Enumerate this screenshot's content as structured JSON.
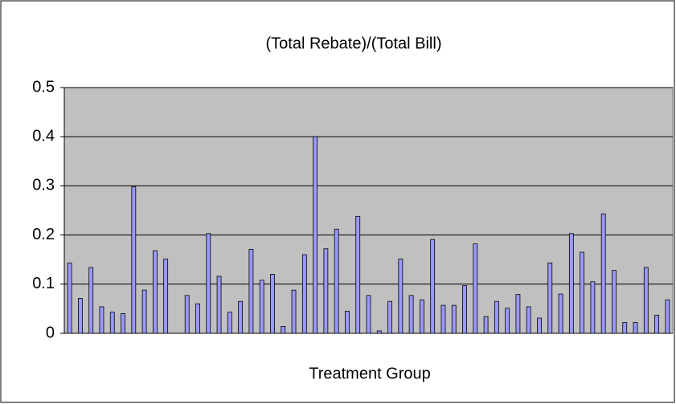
{
  "chart_data": {
    "type": "bar",
    "title": "(Total Rebate)/(Total Bill)",
    "x_label": "Treatment Group",
    "categories": [
      null,
      null,
      null,
      null,
      null,
      null,
      null,
      null,
      null,
      null,
      null,
      null,
      null,
      null,
      null,
      null,
      null,
      null,
      null,
      null,
      null,
      null,
      null,
      null,
      null,
      null,
      null,
      null,
      null,
      null,
      null,
      null,
      null,
      null,
      null,
      null,
      null,
      null,
      null,
      null,
      null,
      null,
      null,
      null,
      null,
      null,
      null,
      null,
      null,
      null,
      null,
      null,
      null,
      null,
      null,
      null,
      null
    ],
    "values": [
      0.143,
      0.071,
      0.134,
      0.054,
      0.043,
      0.04,
      0.298,
      0.088,
      0.168,
      0.151,
      null,
      0.077,
      0.06,
      0.203,
      0.116,
      0.043,
      0.065,
      0.171,
      0.108,
      0.12,
      0.014,
      0.088,
      0.16,
      0.4,
      0.172,
      0.212,
      0.045,
      0.238,
      0.077,
      0.005,
      0.065,
      0.151,
      0.077,
      0.068,
      0.191,
      0.057,
      0.057,
      0.097,
      0.182,
      0.034,
      0.065,
      0.051,
      0.079,
      0.054,
      0.031,
      0.143,
      0.08,
      0.203,
      0.165,
      0.105,
      0.243,
      0.128,
      0.022,
      0.022,
      0.134,
      0.037,
      0.068
    ],
    "color": "#9999ff",
    "ylim": [
      0,
      0.5
    ],
    "yticks": [
      0,
      0.1,
      0.2,
      0.3,
      0.4,
      0.5
    ],
    "grid": true
  }
}
